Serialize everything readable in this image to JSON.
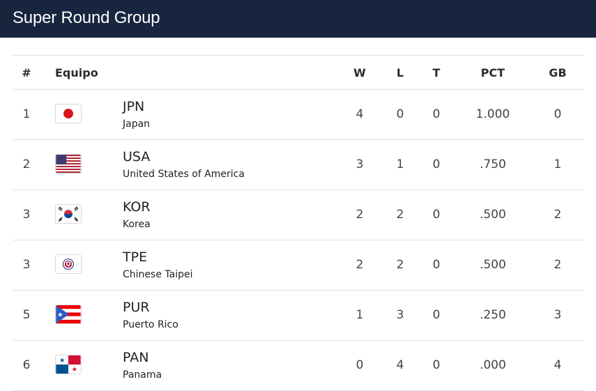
{
  "header": {
    "title": "Super Round Group"
  },
  "table": {
    "columns": {
      "rank": "#",
      "team": "Equipo",
      "w": "W",
      "l": "L",
      "t": "T",
      "pct": "PCT",
      "gb": "GB"
    },
    "rows": [
      {
        "rank": "1",
        "flag": "japan-flag",
        "code": "JPN",
        "name": "Japan",
        "w": "4",
        "l": "0",
        "t": "0",
        "pct": "1.000",
        "gb": "0"
      },
      {
        "rank": "2",
        "flag": "usa-flag",
        "code": "USA",
        "name": "United States of America",
        "w": "3",
        "l": "1",
        "t": "0",
        "pct": ".750",
        "gb": "1"
      },
      {
        "rank": "3",
        "flag": "korea-flag",
        "code": "KOR",
        "name": "Korea",
        "w": "2",
        "l": "2",
        "t": "0",
        "pct": ".500",
        "gb": "2"
      },
      {
        "rank": "3",
        "flag": "chinese-taipei-flag",
        "code": "TPE",
        "name": "Chinese Taipei",
        "w": "2",
        "l": "2",
        "t": "0",
        "pct": ".500",
        "gb": "2"
      },
      {
        "rank": "5",
        "flag": "puerto-rico-flag",
        "code": "PUR",
        "name": "Puerto Rico",
        "w": "1",
        "l": "3",
        "t": "0",
        "pct": ".250",
        "gb": "3"
      },
      {
        "rank": "6",
        "flag": "panama-flag",
        "code": "PAN",
        "name": "Panama",
        "w": "0",
        "l": "4",
        "t": "0",
        "pct": ".000",
        "gb": "4"
      }
    ]
  },
  "colors": {
    "header_bg": "#17253f",
    "row_border": "#e2e2e2"
  }
}
